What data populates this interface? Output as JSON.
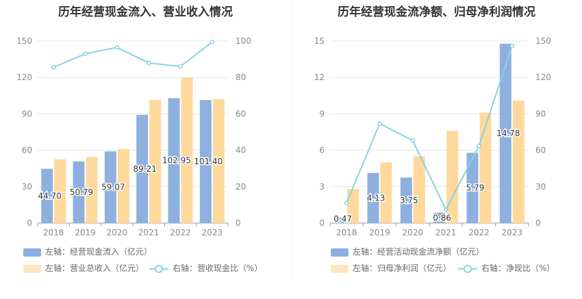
{
  "chart_data": [
    {
      "type": "bar",
      "title": "历年经营现金流入、营业收入情况",
      "categories": [
        "2018",
        "2019",
        "2020",
        "2021",
        "2022",
        "2023"
      ],
      "y_left_ticks": [
        "0",
        "30",
        "60",
        "90",
        "120",
        "150"
      ],
      "y_right_ticks": [
        "0",
        "20",
        "40",
        "60",
        "80",
        "100"
      ],
      "ylim_left": [
        0,
        150
      ],
      "ylim_right": [
        0,
        100
      ],
      "series": [
        {
          "name": "左轴：经营现金流入（亿元）",
          "type": "bar",
          "axis": "left",
          "color": "#8eb0de",
          "values": [
            44.7,
            50.79,
            59.07,
            89.21,
            102.95,
            101.4
          ],
          "labels": [
            "44.70",
            "50.79",
            "59.07",
            "89.21",
            "102.95",
            "101.40"
          ]
        },
        {
          "name": "左轴：营业总收入（亿元）",
          "type": "bar",
          "axis": "left",
          "color": "#ffd99c",
          "values": [
            52.5,
            54.5,
            61.0,
            101.5,
            120.0,
            102.0
          ]
        },
        {
          "name": "右轴：营收现金比（%）",
          "type": "line",
          "axis": "right",
          "color": "#84d5e0",
          "values": [
            85.5,
            93.0,
            96.5,
            88.0,
            86.0,
            99.5
          ]
        }
      ]
    },
    {
      "type": "bar",
      "title": "历年经营现金流净额、归母净利润情况",
      "categories": [
        "2018",
        "2019",
        "2020",
        "2021",
        "2022",
        "2023"
      ],
      "y_left_ticks": [
        "0",
        "3",
        "6",
        "9",
        "12",
        "15"
      ],
      "y_right_ticks": [
        "0",
        "30",
        "60",
        "90",
        "120",
        "150"
      ],
      "ylim_left": [
        0,
        15
      ],
      "ylim_right": [
        0,
        150
      ],
      "series": [
        {
          "name": "左轴：经营活动现金流净额（亿元）",
          "type": "bar",
          "axis": "left",
          "color": "#8eb0de",
          "values": [
            0.47,
            4.13,
            3.75,
            0.86,
            5.79,
            14.78
          ],
          "labels": [
            "0.47",
            "4.13",
            "3.75",
            "0.86",
            "5.79",
            "14.78"
          ]
        },
        {
          "name": "左轴：归母净利润（亿元）",
          "type": "bar",
          "axis": "left",
          "color": "#ffd99c",
          "values": [
            2.8,
            5.0,
            5.5,
            7.6,
            9.1,
            10.1
          ]
        },
        {
          "name": "右轴：净现比（%）",
          "type": "line",
          "axis": "right",
          "color": "#84d5e0",
          "values": [
            16.5,
            82.0,
            68.0,
            11.0,
            63.5,
            146.0
          ]
        }
      ]
    }
  ]
}
